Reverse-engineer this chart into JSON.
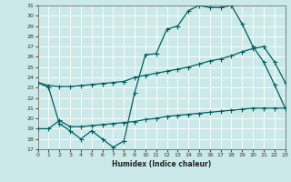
{
  "title": "",
  "xlabel": "Humidex (Indice chaleur)",
  "ylim": [
    17,
    31
  ],
  "xlim": [
    0,
    23
  ],
  "yticks": [
    17,
    18,
    19,
    20,
    21,
    22,
    23,
    24,
    25,
    26,
    27,
    28,
    29,
    30,
    31
  ],
  "xticks": [
    0,
    1,
    2,
    3,
    4,
    5,
    6,
    7,
    8,
    9,
    10,
    11,
    12,
    13,
    14,
    15,
    16,
    17,
    18,
    19,
    20,
    21,
    22,
    23
  ],
  "bg_color": "#cbe9e9",
  "line_color": "#006060",
  "grid_color": "#ffffff",
  "line1_x": [
    0,
    1,
    2,
    3,
    4,
    5,
    6,
    7,
    8,
    9,
    10,
    11,
    12,
    13,
    14,
    15,
    16,
    17,
    18,
    19,
    20,
    21,
    22,
    23
  ],
  "line1_y": [
    23.5,
    23.2,
    23.1,
    23.1,
    23.2,
    23.3,
    23.4,
    23.5,
    23.6,
    24.0,
    24.2,
    24.4,
    24.6,
    24.8,
    25.0,
    25.3,
    25.6,
    25.8,
    26.1,
    26.5,
    26.8,
    27.0,
    25.5,
    23.5
  ],
  "line2_x": [
    0,
    1,
    2,
    3,
    4,
    5,
    6,
    7,
    8,
    9,
    10,
    11,
    12,
    13,
    14,
    15,
    16,
    17,
    18,
    19,
    20,
    21,
    22,
    23
  ],
  "line2_y": [
    23.5,
    23.0,
    19.5,
    18.8,
    18.0,
    18.8,
    18.0,
    17.2,
    17.8,
    22.5,
    26.2,
    26.3,
    28.7,
    29.0,
    30.5,
    31.0,
    30.8,
    30.8,
    31.0,
    29.2,
    27.0,
    25.5,
    23.3,
    21.0
  ],
  "line3_x": [
    0,
    1,
    2,
    3,
    4,
    5,
    6,
    7,
    8,
    9,
    10,
    11,
    12,
    13,
    14,
    15,
    16,
    17,
    18,
    19,
    20,
    21,
    22,
    23
  ],
  "line3_y": [
    19.0,
    19.0,
    19.8,
    19.2,
    19.2,
    19.3,
    19.4,
    19.5,
    19.6,
    19.7,
    19.9,
    20.0,
    20.2,
    20.3,
    20.4,
    20.5,
    20.6,
    20.7,
    20.8,
    20.9,
    21.0,
    21.0,
    21.0,
    21.0
  ]
}
